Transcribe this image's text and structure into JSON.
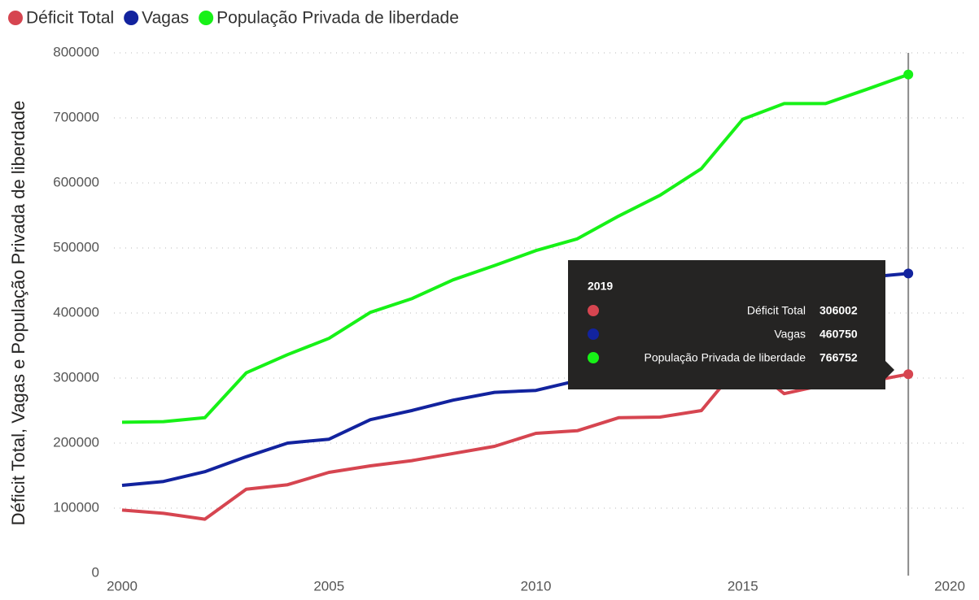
{
  "chart_data": {
    "type": "line",
    "y_label": "Déficit Total, Vagas e População Privada de liberdade",
    "x": [
      2000,
      2001,
      2002,
      2003,
      2004,
      2005,
      2006,
      2007,
      2008,
      2009,
      2010,
      2011,
      2012,
      2013,
      2014,
      2015,
      2016,
      2017,
      2018,
      2019
    ],
    "series": [
      {
        "name": "Déficit Total",
        "color": "#d64550",
        "values": [
          97000,
          92000,
          83000,
          129000,
          136000,
          155000,
          165000,
          173000,
          184000,
          195000,
          215000,
          219000,
          239000,
          240000,
          250000,
          327000,
          276000,
          290000,
          294000,
          306002
        ]
      },
      {
        "name": "Vagas",
        "color": "#12239e",
        "values": [
          135000,
          141000,
          156000,
          179000,
          200000,
          206000,
          236000,
          250000,
          266000,
          278000,
          281000,
          296000,
          310000,
          341000,
          372000,
          371000,
          367000,
          423000,
          455000,
          460750
        ]
      },
      {
        "name": "População Privada de liberdade",
        "color": "#17f117",
        "values": [
          232000,
          233000,
          239000,
          308000,
          336000,
          361000,
          401000,
          422000,
          451000,
          473000,
          496000,
          514000,
          549000,
          581000,
          622000,
          698000,
          722000,
          722000,
          744000,
          766752
        ]
      }
    ],
    "xlim": [
      2000,
      2020
    ],
    "xticks": [
      2000,
      2005,
      2010,
      2015,
      2020
    ],
    "ylim": [
      0,
      800000
    ],
    "yticks": [
      0,
      100000,
      200000,
      300000,
      400000,
      500000,
      600000,
      700000,
      800000
    ],
    "grid": true,
    "legend": "top-left"
  }
}
